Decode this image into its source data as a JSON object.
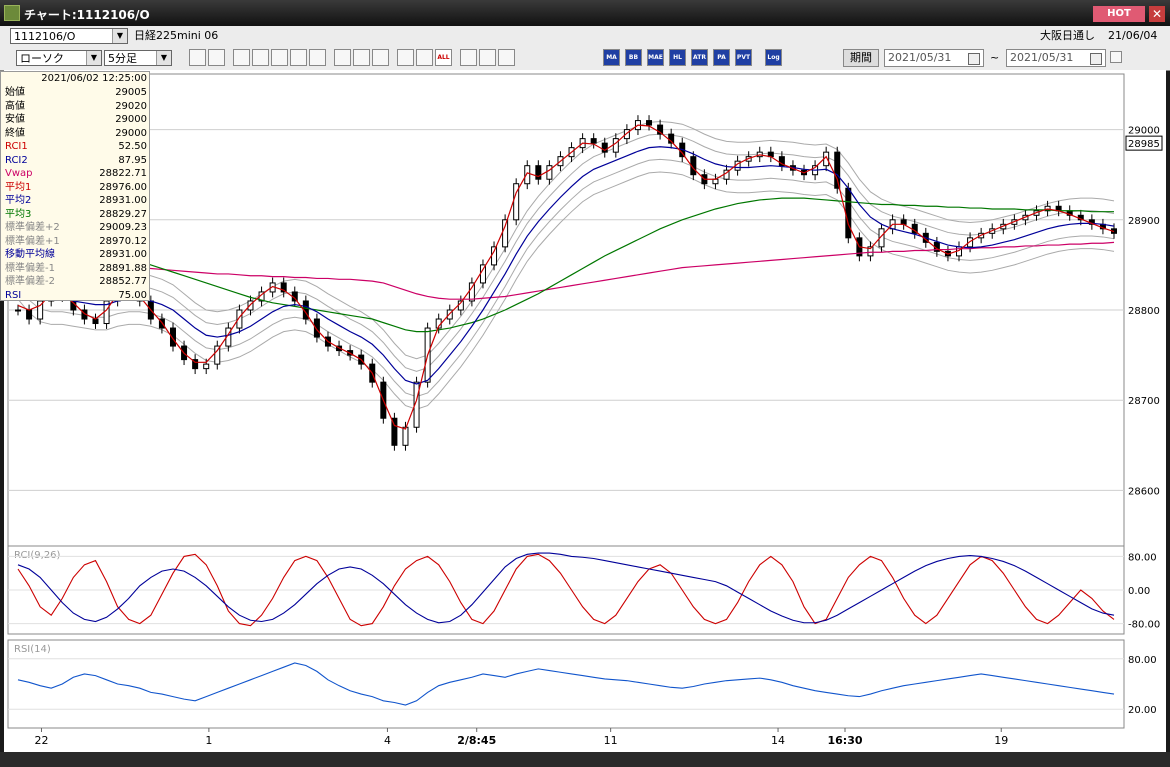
{
  "window": {
    "title": "チャート:1112106/O",
    "hot_label": "HOT",
    "close_glyph": "✕"
  },
  "toolbar": {
    "symbol_code": "1112106/O",
    "symbol_name": "日経225mini 06",
    "chart_type": "ローソク",
    "interval": "5分足",
    "session": "大阪日通し",
    "session_date": "21/06/04",
    "period_button": "期間",
    "from_date": "2021/05/31",
    "range_sep": "~",
    "to_date": "2021/05/31",
    "indicator_buttons": [
      "MA",
      "BB",
      "MAE",
      "HL",
      "ATR",
      "PA",
      "PVT",
      "Log"
    ],
    "tool_icons": [
      "zoom-icon",
      "cursor-line-icon",
      "buy-sell-icon",
      "volume-icon",
      "line-chart-icon",
      "heikin-icon",
      "gray-icon",
      "draw-line-icon",
      "pointer-icon",
      "redo-icon",
      "sub-window-icon",
      "sub-window-plus-icon",
      "all-icon",
      "settings-icon",
      "wrench-icon",
      "color-icon"
    ]
  },
  "info_panel": {
    "timestamp": "2021/06/02 12:25:00",
    "rows": [
      {
        "label": "始値",
        "value": "29005",
        "color": "#000000"
      },
      {
        "label": "高値",
        "value": "29020",
        "color": "#000000"
      },
      {
        "label": "安値",
        "value": "29000",
        "color": "#000000"
      },
      {
        "label": "終値",
        "value": "29000",
        "color": "#000000"
      },
      {
        "label": "RCI1",
        "value": "52.50",
        "color": "#cc0000"
      },
      {
        "label": "RCI2",
        "value": "87.95",
        "color": "#000099"
      },
      {
        "label": "Vwap",
        "value": "28822.71",
        "color": "#cc0066"
      },
      {
        "label": "平均1",
        "value": "28976.00",
        "color": "#cc0000"
      },
      {
        "label": "平均2",
        "value": "28931.00",
        "color": "#000099"
      },
      {
        "label": "平均3",
        "value": "28829.27",
        "color": "#007700"
      },
      {
        "label": "標準偏差+2",
        "value": "29009.23",
        "color": "#888888"
      },
      {
        "label": "標準偏差+1",
        "value": "28970.12",
        "color": "#888888"
      },
      {
        "label": "移動平均線",
        "value": "28931.00",
        "color": "#000099"
      },
      {
        "label": "標準偏差-1",
        "value": "28891.88",
        "color": "#888888"
      },
      {
        "label": "標準偏差-2",
        "value": "28852.77",
        "color": "#888888"
      },
      {
        "label": "RSI",
        "value": "75.00",
        "color": "#000099"
      }
    ]
  },
  "chart_data": {
    "type": "line",
    "price_axis": {
      "ticks": [
        "29000",
        "28900",
        "28800",
        "28700",
        "28600"
      ],
      "current_price": "28985",
      "range": [
        28545,
        29055
      ]
    },
    "x_axis": {
      "labels": [
        "22",
        "1",
        "4",
        "2/8:45",
        "11",
        "14",
        "16:30",
        "19"
      ]
    },
    "series": [
      {
        "type": "candlestick",
        "values": [
          28800,
          28790,
          28810,
          28830,
          28815,
          28800,
          28790,
          28785,
          28810,
          28830,
          28825,
          28810,
          28790,
          28780,
          28760,
          28745,
          28735,
          28740,
          28760,
          28780,
          28800,
          28810,
          28820,
          28830,
          28820,
          28810,
          28790,
          28770,
          28760,
          28755,
          28750,
          28740,
          28720,
          28680,
          28650,
          28670,
          28720,
          28780,
          28790,
          28800,
          28810,
          28830,
          28850,
          28870,
          28900,
          28940,
          28960,
          28945,
          28960,
          28970,
          28980,
          28990,
          28985,
          28975,
          28990,
          29000,
          29010,
          29005,
          28995,
          28985,
          28970,
          28950,
          28940,
          28945,
          28955,
          28965,
          28970,
          28975,
          28970,
          28960,
          28955,
          28950,
          28960,
          28975,
          28935,
          28880,
          28860,
          28870,
          28890,
          28900,
          28895,
          28885,
          28875,
          28865,
          28860,
          28870,
          28880,
          28885,
          28890,
          28895,
          28900,
          28905,
          28910,
          28915,
          28910,
          28905,
          28900,
          28895,
          28890,
          28885
        ]
      },
      {
        "name": "平均1",
        "color": "#cc0000",
        "values": [
          28805,
          28800,
          28805,
          28818,
          28818,
          28808,
          28796,
          28790,
          28800,
          28818,
          28822,
          28815,
          28800,
          28786,
          28768,
          28752,
          28742,
          28742,
          28755,
          28773,
          28792,
          28806,
          28817,
          28826,
          28822,
          28813,
          28797,
          28778,
          28765,
          28758,
          28752,
          28745,
          28730,
          28700,
          28672,
          28668,
          28700,
          28750,
          28782,
          28796,
          28808,
          28825,
          28845,
          28865,
          28893,
          28930,
          28952,
          28948,
          28955,
          28965,
          28975,
          28985,
          28984,
          28977,
          28985,
          28996,
          29005,
          29004,
          28997,
          28987,
          28974,
          28957,
          28945,
          28945,
          28952,
          28962,
          28968,
          28972,
          28970,
          28962,
          28957,
          28952,
          28958,
          28970,
          28945,
          28895,
          28870,
          28868,
          28882,
          28895,
          28895,
          28888,
          28878,
          28868,
          28862,
          28866,
          28876,
          28883,
          28888,
          28893,
          28898,
          28903,
          28908,
          28912,
          28910,
          28906,
          28901,
          28896,
          28891,
          28887
        ]
      },
      {
        "name": "平均2",
        "color": "#000099",
        "values": [
          28840,
          28825,
          28815,
          28812,
          28812,
          28810,
          28808,
          28806,
          28806,
          28810,
          28812,
          28812,
          28810,
          28806,
          28800,
          28790,
          28780,
          28772,
          28770,
          28772,
          28776,
          28782,
          28790,
          28798,
          28804,
          28806,
          28804,
          28798,
          28790,
          28783,
          28776,
          28770,
          28762,
          28750,
          28735,
          28722,
          28718,
          28722,
          28735,
          28750,
          28765,
          28782,
          28800,
          28820,
          28840,
          28862,
          28882,
          28898,
          28912,
          28925,
          28937,
          28948,
          28956,
          28961,
          28966,
          28971,
          28976,
          28980,
          28981,
          28980,
          28978,
          28973,
          28967,
          28962,
          28959,
          28958,
          28958,
          28959,
          28960,
          28959,
          28958,
          28956,
          28955,
          28956,
          28950,
          28935,
          28917,
          28903,
          28895,
          28890,
          28887,
          28884,
          28880,
          28876,
          28872,
          28870,
          28869,
          28870,
          28872,
          28875,
          28878,
          28882,
          28886,
          28890,
          28893,
          28895,
          28896,
          28896,
          28895,
          28893
        ]
      },
      {
        "name": "平均3",
        "color": "#007700",
        "values": [
          28900,
          28895,
          28890,
          28885,
          28882,
          28878,
          28874,
          28870,
          28866,
          28862,
          28858,
          28854,
          28850,
          28846,
          28842,
          28838,
          28834,
          28830,
          28826,
          28822,
          28818,
          28814,
          28811,
          28808,
          28806,
          28804,
          28802,
          28800,
          28798,
          28796,
          28794,
          28792,
          28790,
          28786,
          28782,
          28778,
          28776,
          28776,
          28778,
          28780,
          28783,
          28786,
          28790,
          28795,
          28800,
          28806,
          28812,
          28818,
          28825,
          28832,
          28839,
          28846,
          28853,
          28860,
          28866,
          28872,
          28878,
          28884,
          28890,
          28895,
          28900,
          28904,
          28908,
          28912,
          28915,
          28918,
          28920,
          28922,
          28923,
          28924,
          28924,
          28924,
          28923,
          28922,
          28921,
          28920,
          28919,
          28918,
          28917,
          28917,
          28916,
          28916,
          28915,
          28915,
          28914,
          28914,
          28913,
          28913,
          28912,
          28912,
          28912,
          28911,
          28911,
          28911,
          28910,
          28910,
          28910,
          28909,
          28909,
          28909
        ]
      },
      {
        "name": "Vwap",
        "color": "#cc0066",
        "values": [
          28860,
          28858,
          28856,
          28855,
          28854,
          28853,
          28852,
          28851,
          28850,
          28849,
          28848,
          28847,
          28846,
          28845,
          28844,
          28843,
          28842,
          28841,
          28840,
          28840,
          28839,
          28838,
          28838,
          28837,
          28837,
          28836,
          28836,
          28835,
          28835,
          28834,
          28834,
          28833,
          28832,
          28830,
          28826,
          28822,
          28818,
          28815,
          28813,
          28812,
          28812,
          28812,
          28813,
          28814,
          28815,
          28817,
          28819,
          28821,
          28823,
          28825,
          28827,
          28829,
          28831,
          28833,
          28835,
          28837,
          28839,
          28841,
          28843,
          28845,
          28847,
          28848,
          28849,
          28850,
          28851,
          28852,
          28853,
          28854,
          28855,
          28856,
          28857,
          28858,
          28859,
          28860,
          28861,
          28862,
          28863,
          28864,
          28864,
          28865,
          28865,
          28866,
          28866,
          28867,
          28867,
          28868,
          28868,
          28869,
          28869,
          28870,
          28870,
          28871,
          28871,
          28872,
          28872,
          28873,
          28873,
          28874,
          28874,
          28875
        ]
      },
      {
        "name": "RCI1",
        "color": "#cc0000",
        "values": [
          50,
          10,
          -40,
          -60,
          -20,
          30,
          60,
          70,
          20,
          -40,
          -70,
          -80,
          -60,
          -10,
          40,
          80,
          85,
          60,
          10,
          -50,
          -80,
          -85,
          -60,
          -20,
          30,
          70,
          80,
          70,
          30,
          -20,
          -70,
          -85,
          -80,
          -40,
          10,
          50,
          70,
          80,
          60,
          20,
          -30,
          -70,
          -80,
          -50,
          0,
          50,
          80,
          85,
          70,
          40,
          0,
          -40,
          -70,
          -80,
          -60,
          -20,
          20,
          50,
          60,
          40,
          0,
          -40,
          -70,
          -80,
          -70,
          -30,
          20,
          60,
          80,
          60,
          20,
          -40,
          -80,
          -70,
          -20,
          30,
          60,
          80,
          70,
          30,
          -20,
          -60,
          -80,
          -60,
          -20,
          20,
          60,
          80,
          70,
          40,
          0,
          -40,
          -70,
          -80,
          -60,
          -30,
          0,
          -20,
          -50,
          -70
        ]
      },
      {
        "name": "RCI2",
        "color": "#000099",
        "values": [
          60,
          50,
          30,
          0,
          -30,
          -55,
          -70,
          -75,
          -65,
          -45,
          -20,
          10,
          30,
          45,
          50,
          45,
          30,
          10,
          -15,
          -40,
          -60,
          -72,
          -75,
          -70,
          -55,
          -35,
          -10,
          15,
          35,
          50,
          55,
          50,
          35,
          15,
          -10,
          -35,
          -55,
          -70,
          -78,
          -75,
          -60,
          -35,
          -5,
          25,
          55,
          75,
          85,
          88,
          88,
          85,
          80,
          78,
          75,
          70,
          65,
          60,
          55,
          50,
          45,
          40,
          35,
          30,
          25,
          20,
          10,
          -5,
          -20,
          -35,
          -50,
          -62,
          -72,
          -78,
          -78,
          -72,
          -60,
          -45,
          -30,
          -15,
          0,
          15,
          30,
          45,
          58,
          68,
          75,
          80,
          82,
          80,
          75,
          68,
          58,
          45,
          30,
          15,
          0,
          -15,
          -30,
          -45,
          -55,
          -60
        ]
      },
      {
        "name": "RSI",
        "color": "#1155cc",
        "values": [
          55,
          52,
          48,
          45,
          50,
          58,
          62,
          60,
          55,
          50,
          48,
          45,
          40,
          38,
          35,
          32,
          30,
          35,
          40,
          45,
          50,
          55,
          60,
          65,
          70,
          75,
          72,
          65,
          55,
          48,
          42,
          38,
          35,
          30,
          28,
          25,
          30,
          40,
          48,
          52,
          55,
          58,
          62,
          60,
          58,
          62,
          65,
          68,
          66,
          64,
          62,
          60,
          58,
          56,
          55,
          54,
          52,
          50,
          48,
          46,
          45,
          47,
          50,
          52,
          54,
          55,
          56,
          57,
          55,
          52,
          48,
          45,
          42,
          40,
          38,
          36,
          35,
          38,
          42,
          45,
          48,
          50,
          52,
          54,
          56,
          58,
          60,
          62,
          60,
          58,
          56,
          54,
          52,
          50,
          48,
          46,
          44,
          42,
          40,
          38
        ]
      }
    ],
    "rci_panel": {
      "label": "RCI(9,26)",
      "ticks": [
        "80.00",
        "0.00",
        "-80.00"
      ],
      "range": [
        -100,
        100
      ]
    },
    "rsi_panel": {
      "label": "RSI(14)",
      "ticks": [
        "80.00",
        "20.00"
      ],
      "range": [
        0,
        100
      ]
    }
  }
}
